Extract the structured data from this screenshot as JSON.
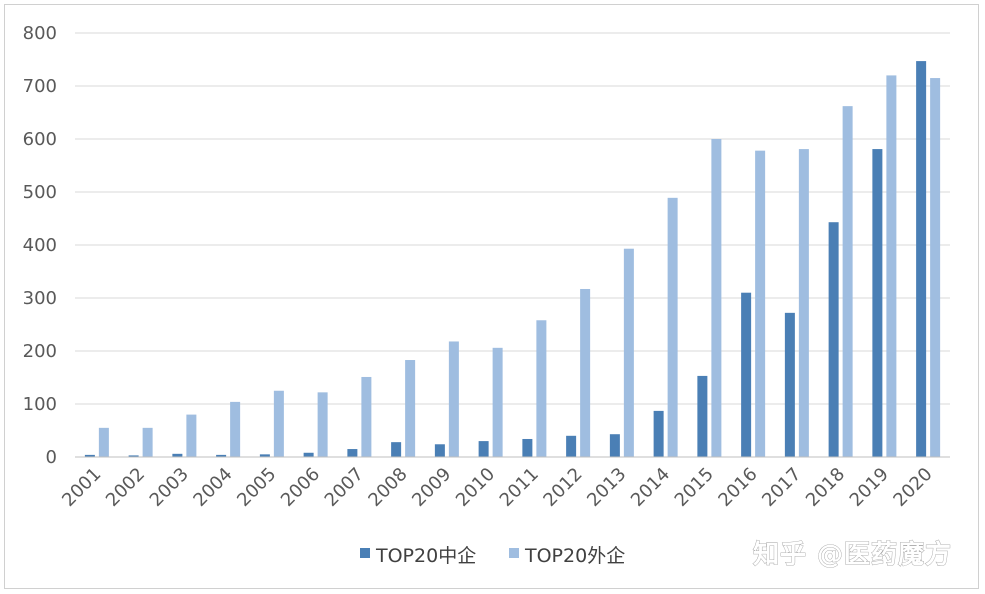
{
  "chart_data": {
    "type": "bar",
    "title": "",
    "xlabel": "",
    "ylabel": "",
    "categories": [
      "2001",
      "2002",
      "2003",
      "2004",
      "2005",
      "2006",
      "2007",
      "2008",
      "2009",
      "2010",
      "2011",
      "2012",
      "2013",
      "2014",
      "2015",
      "2016",
      "2017",
      "2018",
      "2019",
      "2020"
    ],
    "series": [
      {
        "name": "TOP20中企",
        "color": "#4a7fb5",
        "values": [
          4,
          3,
          6,
          4,
          5,
          8,
          15,
          28,
          24,
          30,
          34,
          40,
          43,
          87,
          153,
          310,
          272,
          443,
          581,
          747
        ]
      },
      {
        "name": "TOP20外企",
        "color": "#9fbde0",
        "values": [
          55,
          55,
          80,
          104,
          125,
          122,
          151,
          183,
          218,
          206,
          258,
          317,
          393,
          489,
          600,
          578,
          581,
          662,
          720,
          715
        ]
      }
    ],
    "ylim": [
      0,
      800
    ],
    "yticks": [
      0,
      100,
      200,
      300,
      400,
      500,
      600,
      700,
      800
    ],
    "grid": true,
    "legend_position": "bottom"
  },
  "watermark": "知乎 @医药魔方"
}
